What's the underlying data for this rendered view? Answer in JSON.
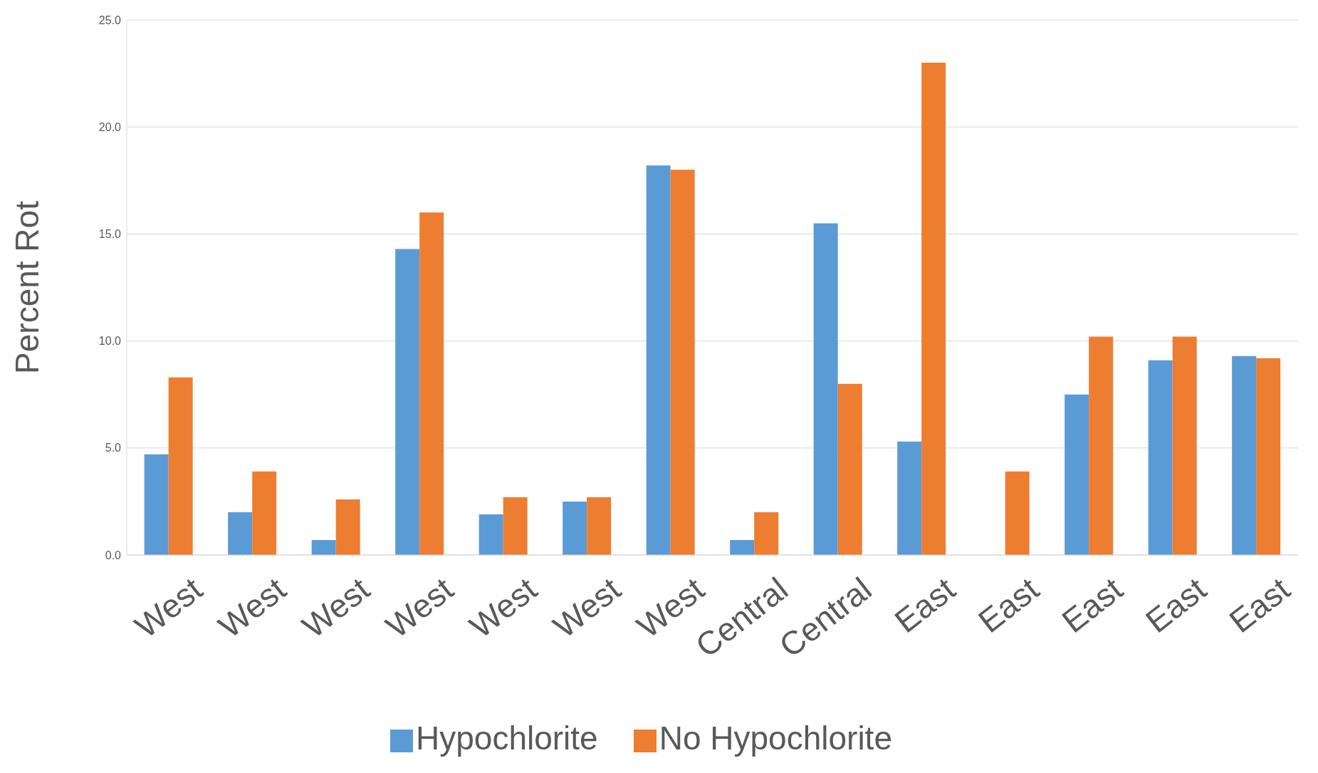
{
  "chart_data": {
    "type": "bar",
    "ylabel": "Percent Rot",
    "categories": [
      "West",
      "West",
      "West",
      "West",
      "West",
      "West",
      "West",
      "Central",
      "Central",
      "East",
      "East",
      "East",
      "East",
      "East"
    ],
    "series": [
      {
        "name": "Hypochlorite",
        "color": "#5b9bd5",
        "values": [
          4.7,
          2.0,
          0.7,
          14.3,
          1.9,
          2.5,
          18.2,
          0.7,
          15.5,
          5.3,
          0,
          7.5,
          9.1,
          9.3
        ]
      },
      {
        "name": "No Hypochlorite",
        "color": "#ed7d31",
        "values": [
          8.3,
          3.9,
          2.6,
          16.0,
          2.7,
          2.7,
          18.0,
          2.0,
          8.0,
          23.0,
          3.9,
          10.2,
          10.2,
          9.2
        ]
      }
    ],
    "ylim": [
      0,
      25
    ],
    "yticks": [
      {
        "value": 0,
        "label": "0.0"
      },
      {
        "value": 5,
        "label": "5.0"
      },
      {
        "value": 10,
        "label": "10.0"
      },
      {
        "value": 15,
        "label": "15.0"
      },
      {
        "value": 20,
        "label": "20.0"
      },
      {
        "value": 25,
        "label": "25.0"
      }
    ],
    "grid": "y",
    "legend": "bottom"
  }
}
